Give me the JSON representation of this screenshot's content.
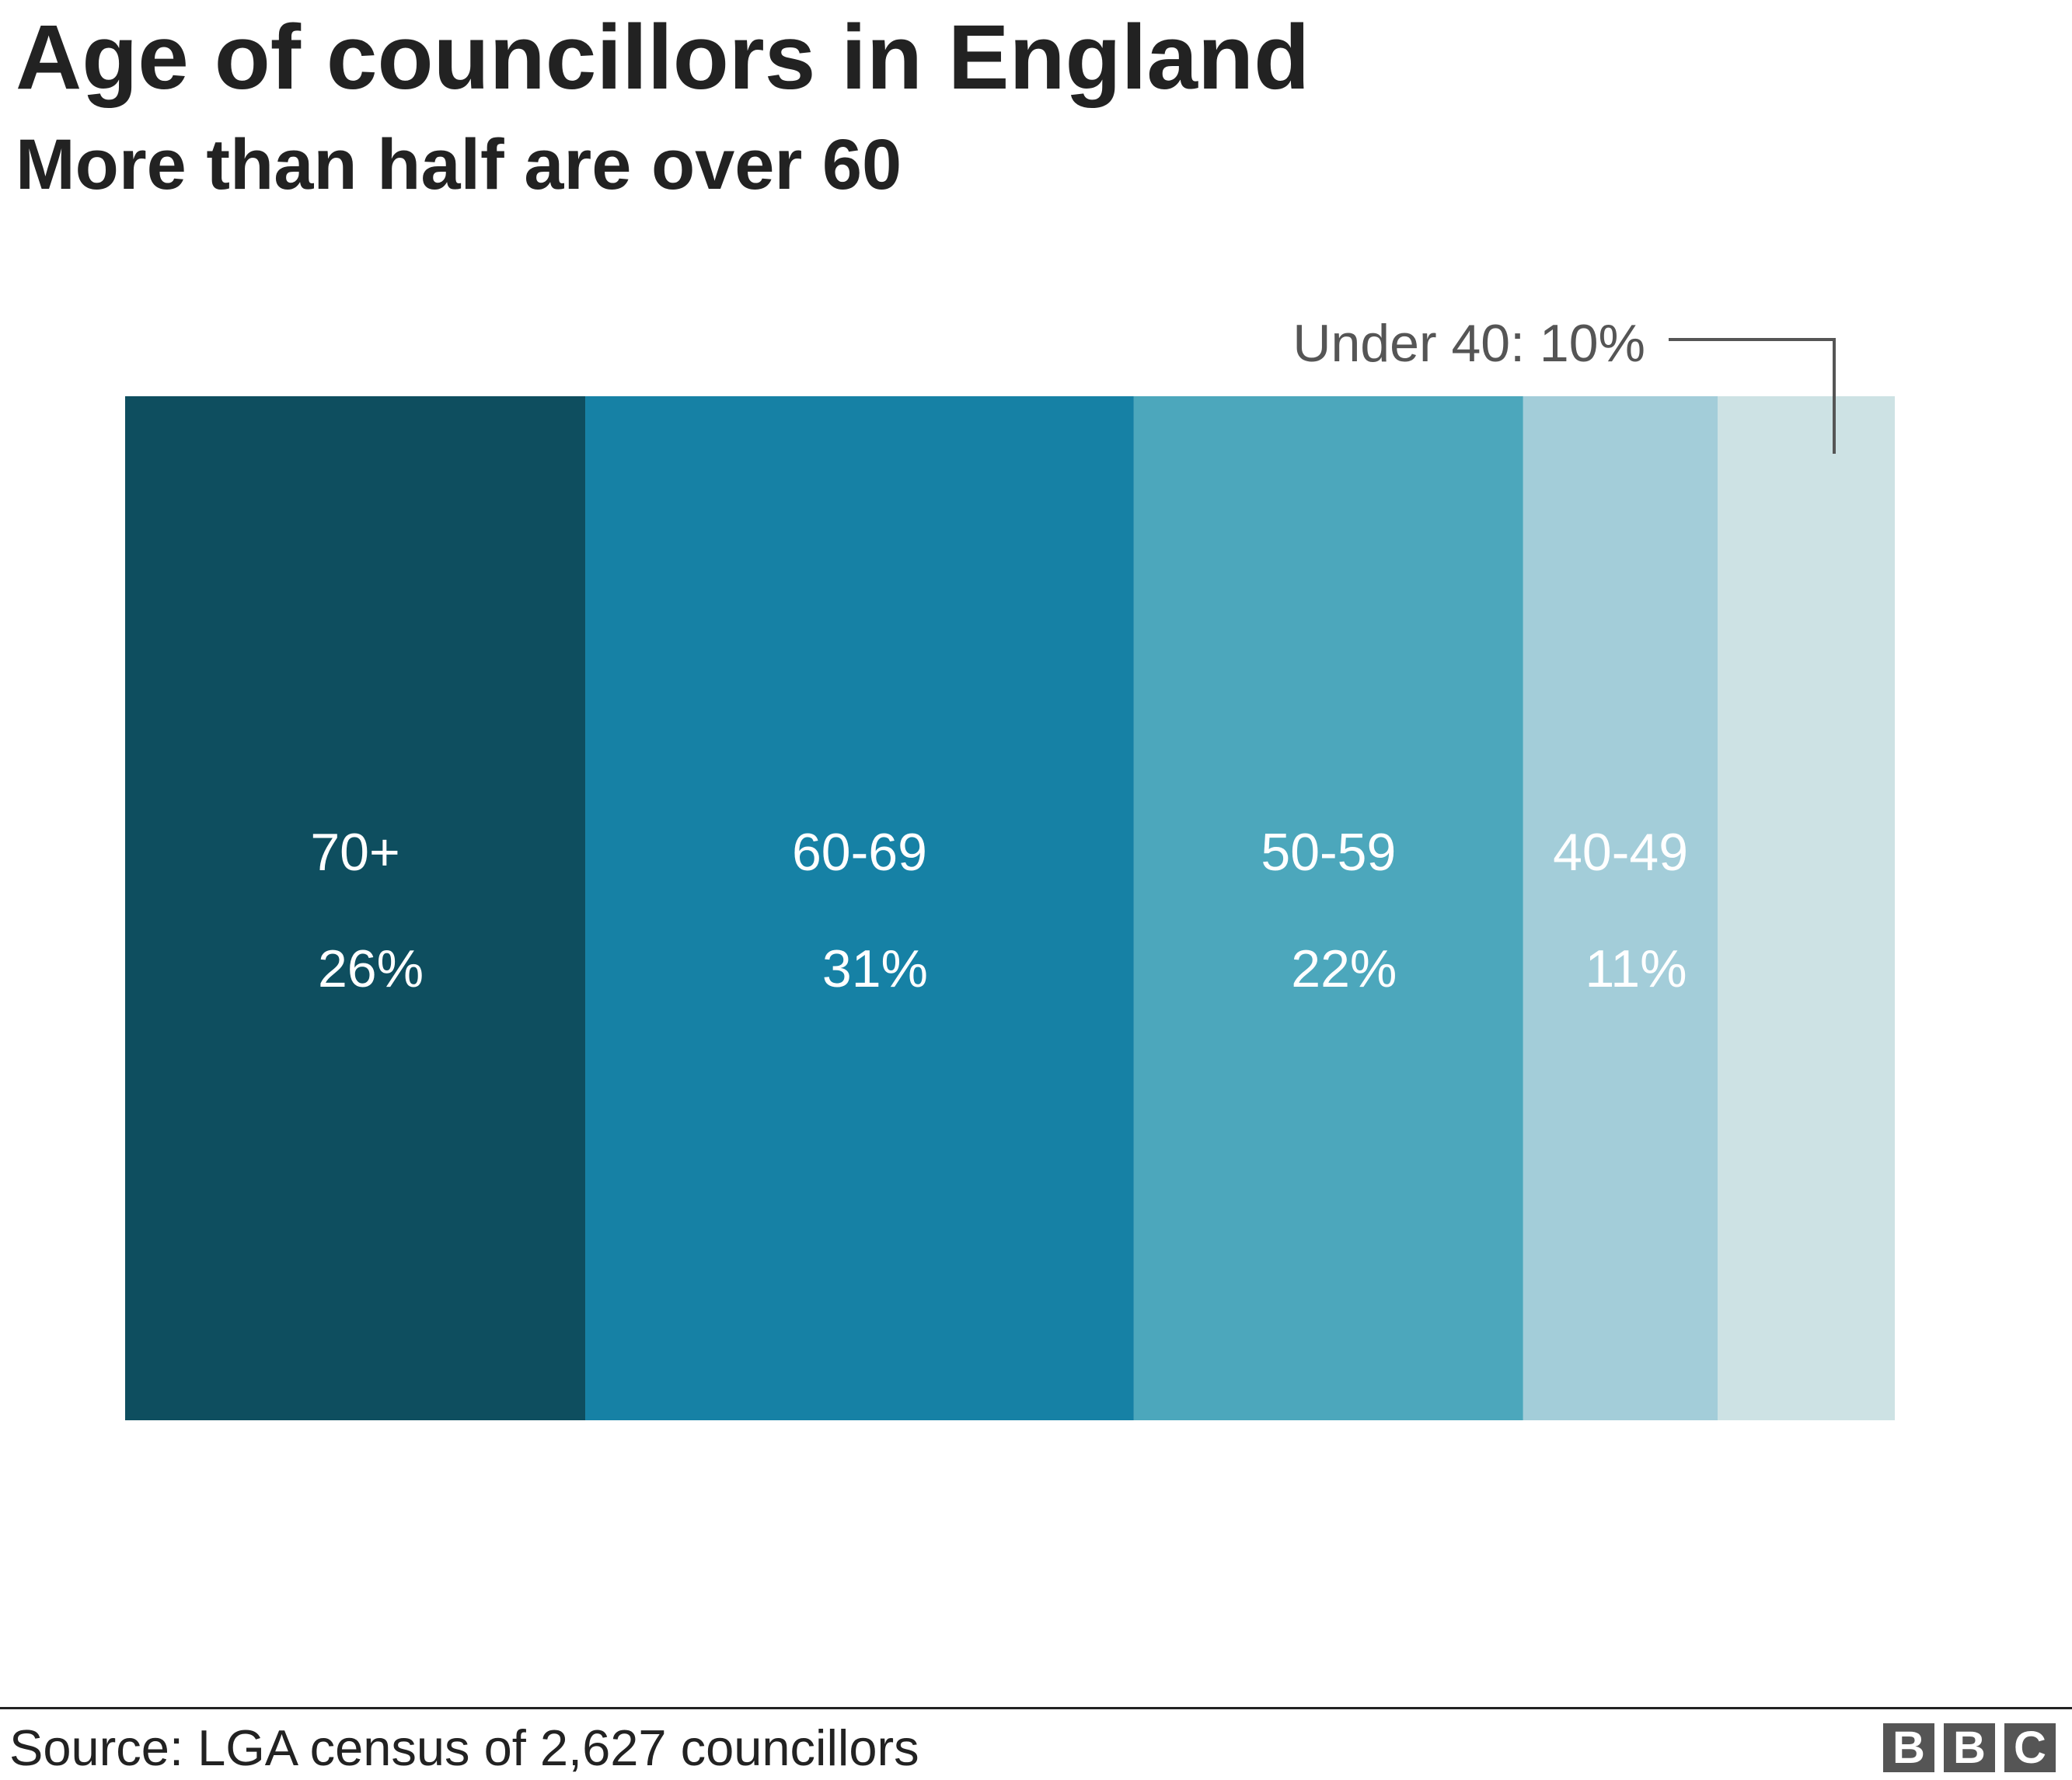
{
  "title": "Age of councillors in England",
  "subtitle": "More than half are over 60",
  "chart_data": {
    "type": "bar",
    "orientation": "horizontal-stacked-100",
    "categories": [
      "70+",
      "60-69",
      "50-59",
      "40-49",
      "Under 40"
    ],
    "values": [
      26,
      31,
      22,
      11,
      10
    ],
    "value_labels": [
      "26%",
      "31%",
      "22%",
      "11%",
      "10%"
    ],
    "colors": [
      "#0e4e5f",
      "#1681a5",
      "#4ca7bc",
      "#a3cdd9",
      "#cde2e4"
    ],
    "annotation": "Under 40: 10%",
    "unit": "%",
    "xlim": [
      0,
      100
    ],
    "grid": false,
    "legend": "none"
  },
  "source": "Source: LGA census of 2,627 councillors",
  "logo": "BBC"
}
